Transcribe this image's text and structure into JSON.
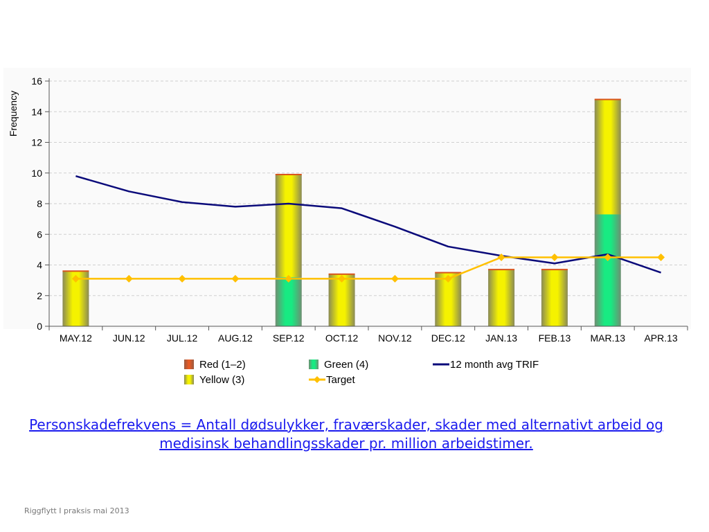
{
  "chart_data": {
    "type": "bar",
    "ylabel": "Frequency",
    "ylim": [
      0,
      16
    ],
    "yticks": [
      "0",
      "2",
      "4",
      "6",
      "8",
      "10",
      "12",
      "14",
      "16"
    ],
    "grid": "horizontal dashed",
    "categories": [
      "MAY.12",
      "JUN.12",
      "JUL.12",
      "AUG.12",
      "SEP.12",
      "OCT.12",
      "NOV.12",
      "DEC.12",
      "JAN.13",
      "FEB.13",
      "MAR.13",
      "APR.13"
    ],
    "bar_series": [
      {
        "name": "Red (1-2)",
        "color": "#e8501a",
        "values": [
          0,
          0,
          0,
          0,
          0,
          0,
          0,
          0,
          0,
          0,
          0,
          0
        ]
      },
      {
        "name": "Green (4)",
        "color": "#19e27e",
        "values": [
          0,
          0,
          0,
          0,
          3.2,
          0,
          0,
          0,
          0,
          0,
          7.3,
          0
        ]
      },
      {
        "name": "Yellow (3)",
        "color": "#f2f000",
        "values": [
          3.6,
          0,
          0,
          0,
          6.7,
          3.4,
          0,
          3.5,
          3.7,
          3.7,
          7.5,
          0
        ]
      }
    ],
    "line_series": [
      {
        "name": "12 month avg TRIF",
        "color": "#0a0a7a",
        "values": [
          9.8,
          8.8,
          8.1,
          7.8,
          8.0,
          7.7,
          6.5,
          5.2,
          4.6,
          4.1,
          4.7,
          3.5
        ]
      },
      {
        "name": "Target",
        "color": "#ffc000",
        "marker": "diamond",
        "values": [
          3.1,
          3.1,
          3.1,
          3.1,
          3.1,
          3.1,
          3.1,
          3.1,
          4.5,
          4.5,
          4.5,
          4.5
        ]
      }
    ],
    "legend": {
      "placement": "bottom",
      "items": [
        {
          "label": "Red (1–2)",
          "kind": "swatch",
          "color": "#e8501a"
        },
        {
          "label": "Green (4)",
          "kind": "swatch",
          "color": "#19e27e"
        },
        {
          "label": "12 month avg TRIF",
          "kind": "line",
          "color": "#0a0a7a"
        },
        {
          "label": "Yellow (3)",
          "kind": "swatch",
          "color": "#f2f000"
        },
        {
          "label": "Target",
          "kind": "line-diamond",
          "color": "#ffc000"
        }
      ]
    }
  },
  "caption": "Personskadefrekvens = Antall dødsulykker, fraværskader, skader med alternativt arbeid og medisinsk behandlingsskader pr. million arbeidstimer.",
  "footer": "Riggflytt I praksis mai 2013"
}
